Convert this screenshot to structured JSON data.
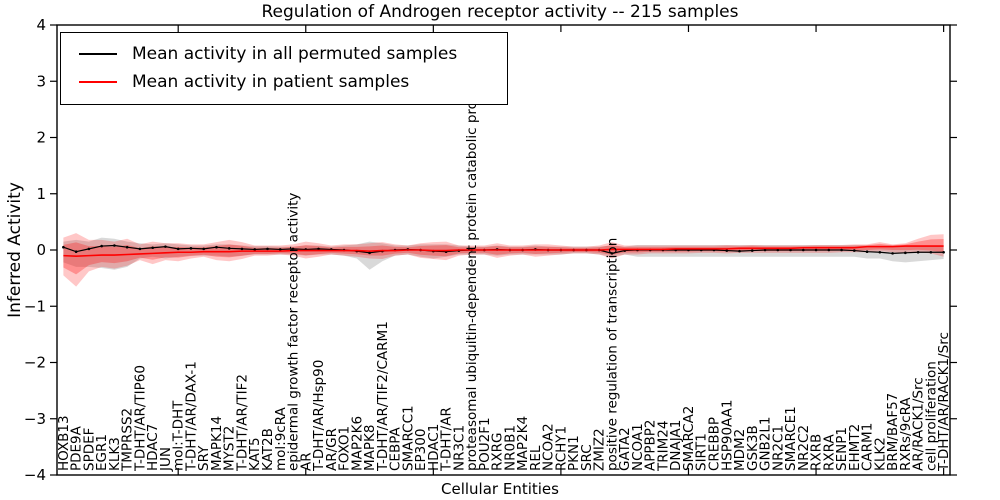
{
  "chart_data": {
    "type": "line",
    "title": "Regulation of Androgen receptor activity -- 215 samples",
    "xlabel": "Cellular Entities",
    "ylabel": "Inferred Activity",
    "ylim": [
      -4,
      4
    ],
    "yticks": [
      -4,
      -3,
      -2,
      -1,
      0,
      1,
      2,
      3,
      4
    ],
    "xtick_every": 10,
    "grid": false,
    "legend_position": "upper left",
    "categories": [
      "HOXB13",
      "PDE9A",
      "SPDEF",
      "EGR1",
      "KLK3",
      "TMPRSS2",
      "T-DHT/AR/TIP60",
      "HDAC7",
      "JUN",
      "mol:T-DHT",
      "T-DHT/AR/DAX-1",
      "SRY",
      "MAPK14",
      "MYST2",
      "T-DHT/AR/TIF2",
      "KAT5",
      "KAT2B",
      "mol:9cRA",
      "epidermal growth factor receptor activity",
      "AR",
      "T-DHT/AR/Hsp90",
      "AR/GR",
      "FOXO1",
      "MAP2K6",
      "MAPK8",
      "T-DHT/AR/TIF2/CARM1",
      "CEBPA",
      "SMARCC1",
      "EP300",
      "HDAC1",
      "T-DHT/AR",
      "NR3C1",
      "proteasomal ubiquitin-dependent protein catabolic pro",
      "POU2F1",
      "RXRG",
      "NR0B1",
      "MAP2K4",
      "REL",
      "NCOA2",
      "RCHY1",
      "PKN1",
      "SRC",
      "ZMIZ2",
      "positive regulation of transcription",
      "GATA2",
      "NCOA1",
      "APPBP2",
      "TRIM24",
      "DNAJA1",
      "SMARCA2",
      "SIRT1",
      "CREBBP",
      "HSP90AA1",
      "MDM2",
      "GSK3B",
      "GNB2L1",
      "NR2C1",
      "SMARCE1",
      "NR2C2",
      "RXRB",
      "RXRA",
      "SENP1",
      "EHMT2",
      "CARM1",
      "KLK2",
      "BRM/BAF57",
      "RXRs/9cRA",
      "AR/RACK1/Src",
      "cell proliferation",
      "T-DHT/AR/RACK1/Src"
    ],
    "series": [
      {
        "name": "Mean activity in all permuted samples",
        "color": "#000000",
        "marker": "dot",
        "values": [
          0.05,
          -0.03,
          0.02,
          0.07,
          0.08,
          0.05,
          0.02,
          0.04,
          0.06,
          0.02,
          0.03,
          0.02,
          0.05,
          0.03,
          0.02,
          0.01,
          0.02,
          0.01,
          0.02,
          0.01,
          0.02,
          0.01,
          0.0,
          -0.02,
          -0.05,
          -0.02,
          0.0,
          0.01,
          0.0,
          -0.02,
          -0.03,
          -0.01,
          0.0,
          0.0,
          0.01,
          0.0,
          0.0,
          0.01,
          0.0,
          0.0,
          0.0,
          0.0,
          0.0,
          -0.06,
          -0.01,
          0.0,
          0.0,
          0.0,
          0.0,
          0.0,
          0.0,
          0.0,
          -0.01,
          -0.02,
          -0.01,
          0.0,
          0.0,
          0.0,
          0.0,
          0.0,
          0.0,
          0.0,
          -0.01,
          -0.03,
          -0.04,
          -0.06,
          -0.05,
          -0.04,
          -0.04,
          -0.04
        ],
        "band_low": [
          -0.22,
          -0.3,
          -0.3,
          -0.32,
          -0.35,
          -0.3,
          -0.15,
          -0.12,
          -0.15,
          -0.12,
          -0.1,
          -0.1,
          -0.1,
          -0.12,
          -0.1,
          -0.08,
          -0.08,
          -0.08,
          -0.08,
          -0.1,
          -0.08,
          -0.08,
          -0.1,
          -0.15,
          -0.35,
          -0.2,
          -0.1,
          -0.08,
          -0.12,
          -0.15,
          -0.12,
          -0.08,
          -0.08,
          -0.08,
          -0.1,
          -0.08,
          -0.08,
          -0.08,
          -0.08,
          -0.08,
          -0.06,
          -0.06,
          -0.08,
          -0.12,
          -0.08,
          -0.12,
          -0.12,
          -0.12,
          -0.12,
          -0.12,
          -0.12,
          -0.12,
          -0.12,
          -0.12,
          -0.12,
          -0.12,
          -0.12,
          -0.12,
          -0.12,
          -0.12,
          -0.12,
          -0.12,
          -0.12,
          -0.15,
          -0.15,
          -0.2,
          -0.22,
          -0.2,
          -0.18,
          -0.16
        ],
        "band_high": [
          0.15,
          0.18,
          0.15,
          0.22,
          0.2,
          0.15,
          0.12,
          0.1,
          0.12,
          0.1,
          0.08,
          0.08,
          0.1,
          0.1,
          0.08,
          0.07,
          0.07,
          0.06,
          0.06,
          0.08,
          0.08,
          0.06,
          0.08,
          0.1,
          0.15,
          0.12,
          0.08,
          0.08,
          0.1,
          0.1,
          0.1,
          0.08,
          0.06,
          0.06,
          0.08,
          0.06,
          0.06,
          0.08,
          0.06,
          0.06,
          0.06,
          0.06,
          0.06,
          0.08,
          0.06,
          0.09,
          0.09,
          0.09,
          0.09,
          0.09,
          0.09,
          0.09,
          0.09,
          0.09,
          0.09,
          0.09,
          0.09,
          0.09,
          0.09,
          0.09,
          0.09,
          0.09,
          0.09,
          0.08,
          0.08,
          0.08,
          0.08,
          0.08,
          0.08,
          0.08
        ],
        "band_color": "#808080",
        "band_opacity": 0.3
      },
      {
        "name": "Mean activity in patient samples",
        "color": "#ff0000",
        "marker": "none",
        "values": [
          -0.1,
          -0.11,
          -0.1,
          -0.09,
          -0.09,
          -0.08,
          -0.07,
          -0.06,
          -0.05,
          -0.04,
          -0.04,
          -0.03,
          -0.03,
          -0.03,
          -0.02,
          -0.02,
          -0.02,
          -0.02,
          -0.01,
          -0.01,
          -0.01,
          -0.01,
          -0.01,
          -0.01,
          -0.02,
          -0.01,
          -0.01,
          0.0,
          0.0,
          -0.01,
          -0.01,
          0.0,
          0.0,
          0.0,
          0.0,
          0.0,
          0.0,
          0.0,
          0.0,
          0.0,
          0.0,
          0.0,
          0.0,
          0.01,
          0.01,
          0.01,
          0.01,
          0.01,
          0.02,
          0.02,
          0.02,
          0.02,
          0.02,
          0.03,
          0.03,
          0.03,
          0.03,
          0.03,
          0.04,
          0.04,
          0.04,
          0.04,
          0.04,
          0.06,
          0.06,
          0.06,
          0.07,
          0.07,
          0.07,
          0.07
        ],
        "band_low": [
          -0.45,
          -0.65,
          -0.38,
          -0.3,
          -0.33,
          -0.28,
          -0.18,
          -0.25,
          -0.18,
          -0.2,
          -0.15,
          -0.12,
          -0.18,
          -0.2,
          -0.16,
          -0.1,
          -0.1,
          -0.08,
          -0.1,
          -0.15,
          -0.12,
          -0.08,
          -0.1,
          -0.12,
          -0.15,
          -0.16,
          -0.1,
          -0.08,
          -0.14,
          -0.16,
          -0.18,
          -0.1,
          -0.08,
          -0.08,
          -0.14,
          -0.1,
          -0.08,
          -0.12,
          -0.1,
          -0.08,
          -0.06,
          -0.06,
          -0.08,
          -0.15,
          -0.08,
          -0.08,
          -0.06,
          -0.06,
          -0.06,
          -0.06,
          -0.05,
          -0.05,
          -0.06,
          -0.05,
          -0.05,
          -0.05,
          -0.05,
          -0.05,
          -0.05,
          -0.05,
          -0.05,
          -0.04,
          -0.04,
          -0.04,
          -0.02,
          -0.04,
          -0.05,
          -0.04,
          -0.06,
          -0.12
        ],
        "band_high": [
          0.22,
          0.3,
          0.18,
          0.18,
          0.15,
          0.2,
          0.1,
          0.15,
          0.12,
          0.12,
          0.1,
          0.1,
          0.14,
          0.18,
          0.14,
          0.08,
          0.08,
          0.08,
          0.1,
          0.15,
          0.12,
          0.08,
          0.1,
          0.1,
          0.12,
          0.14,
          0.1,
          0.08,
          0.12,
          0.14,
          0.15,
          0.08,
          0.08,
          0.08,
          0.12,
          0.08,
          0.08,
          0.1,
          0.1,
          0.08,
          0.06,
          0.06,
          0.08,
          0.14,
          0.08,
          0.08,
          0.08,
          0.08,
          0.08,
          0.08,
          0.08,
          0.08,
          0.09,
          0.08,
          0.09,
          0.08,
          0.08,
          0.08,
          0.08,
          0.09,
          0.09,
          0.09,
          0.1,
          0.1,
          0.14,
          0.1,
          0.12,
          0.2,
          0.27,
          0.28
        ],
        "band_color": "#ff0000",
        "band_opacity": 0.22,
        "band_inner_scale": 0.6,
        "band_inner_opacity": 0.28
      }
    ]
  }
}
